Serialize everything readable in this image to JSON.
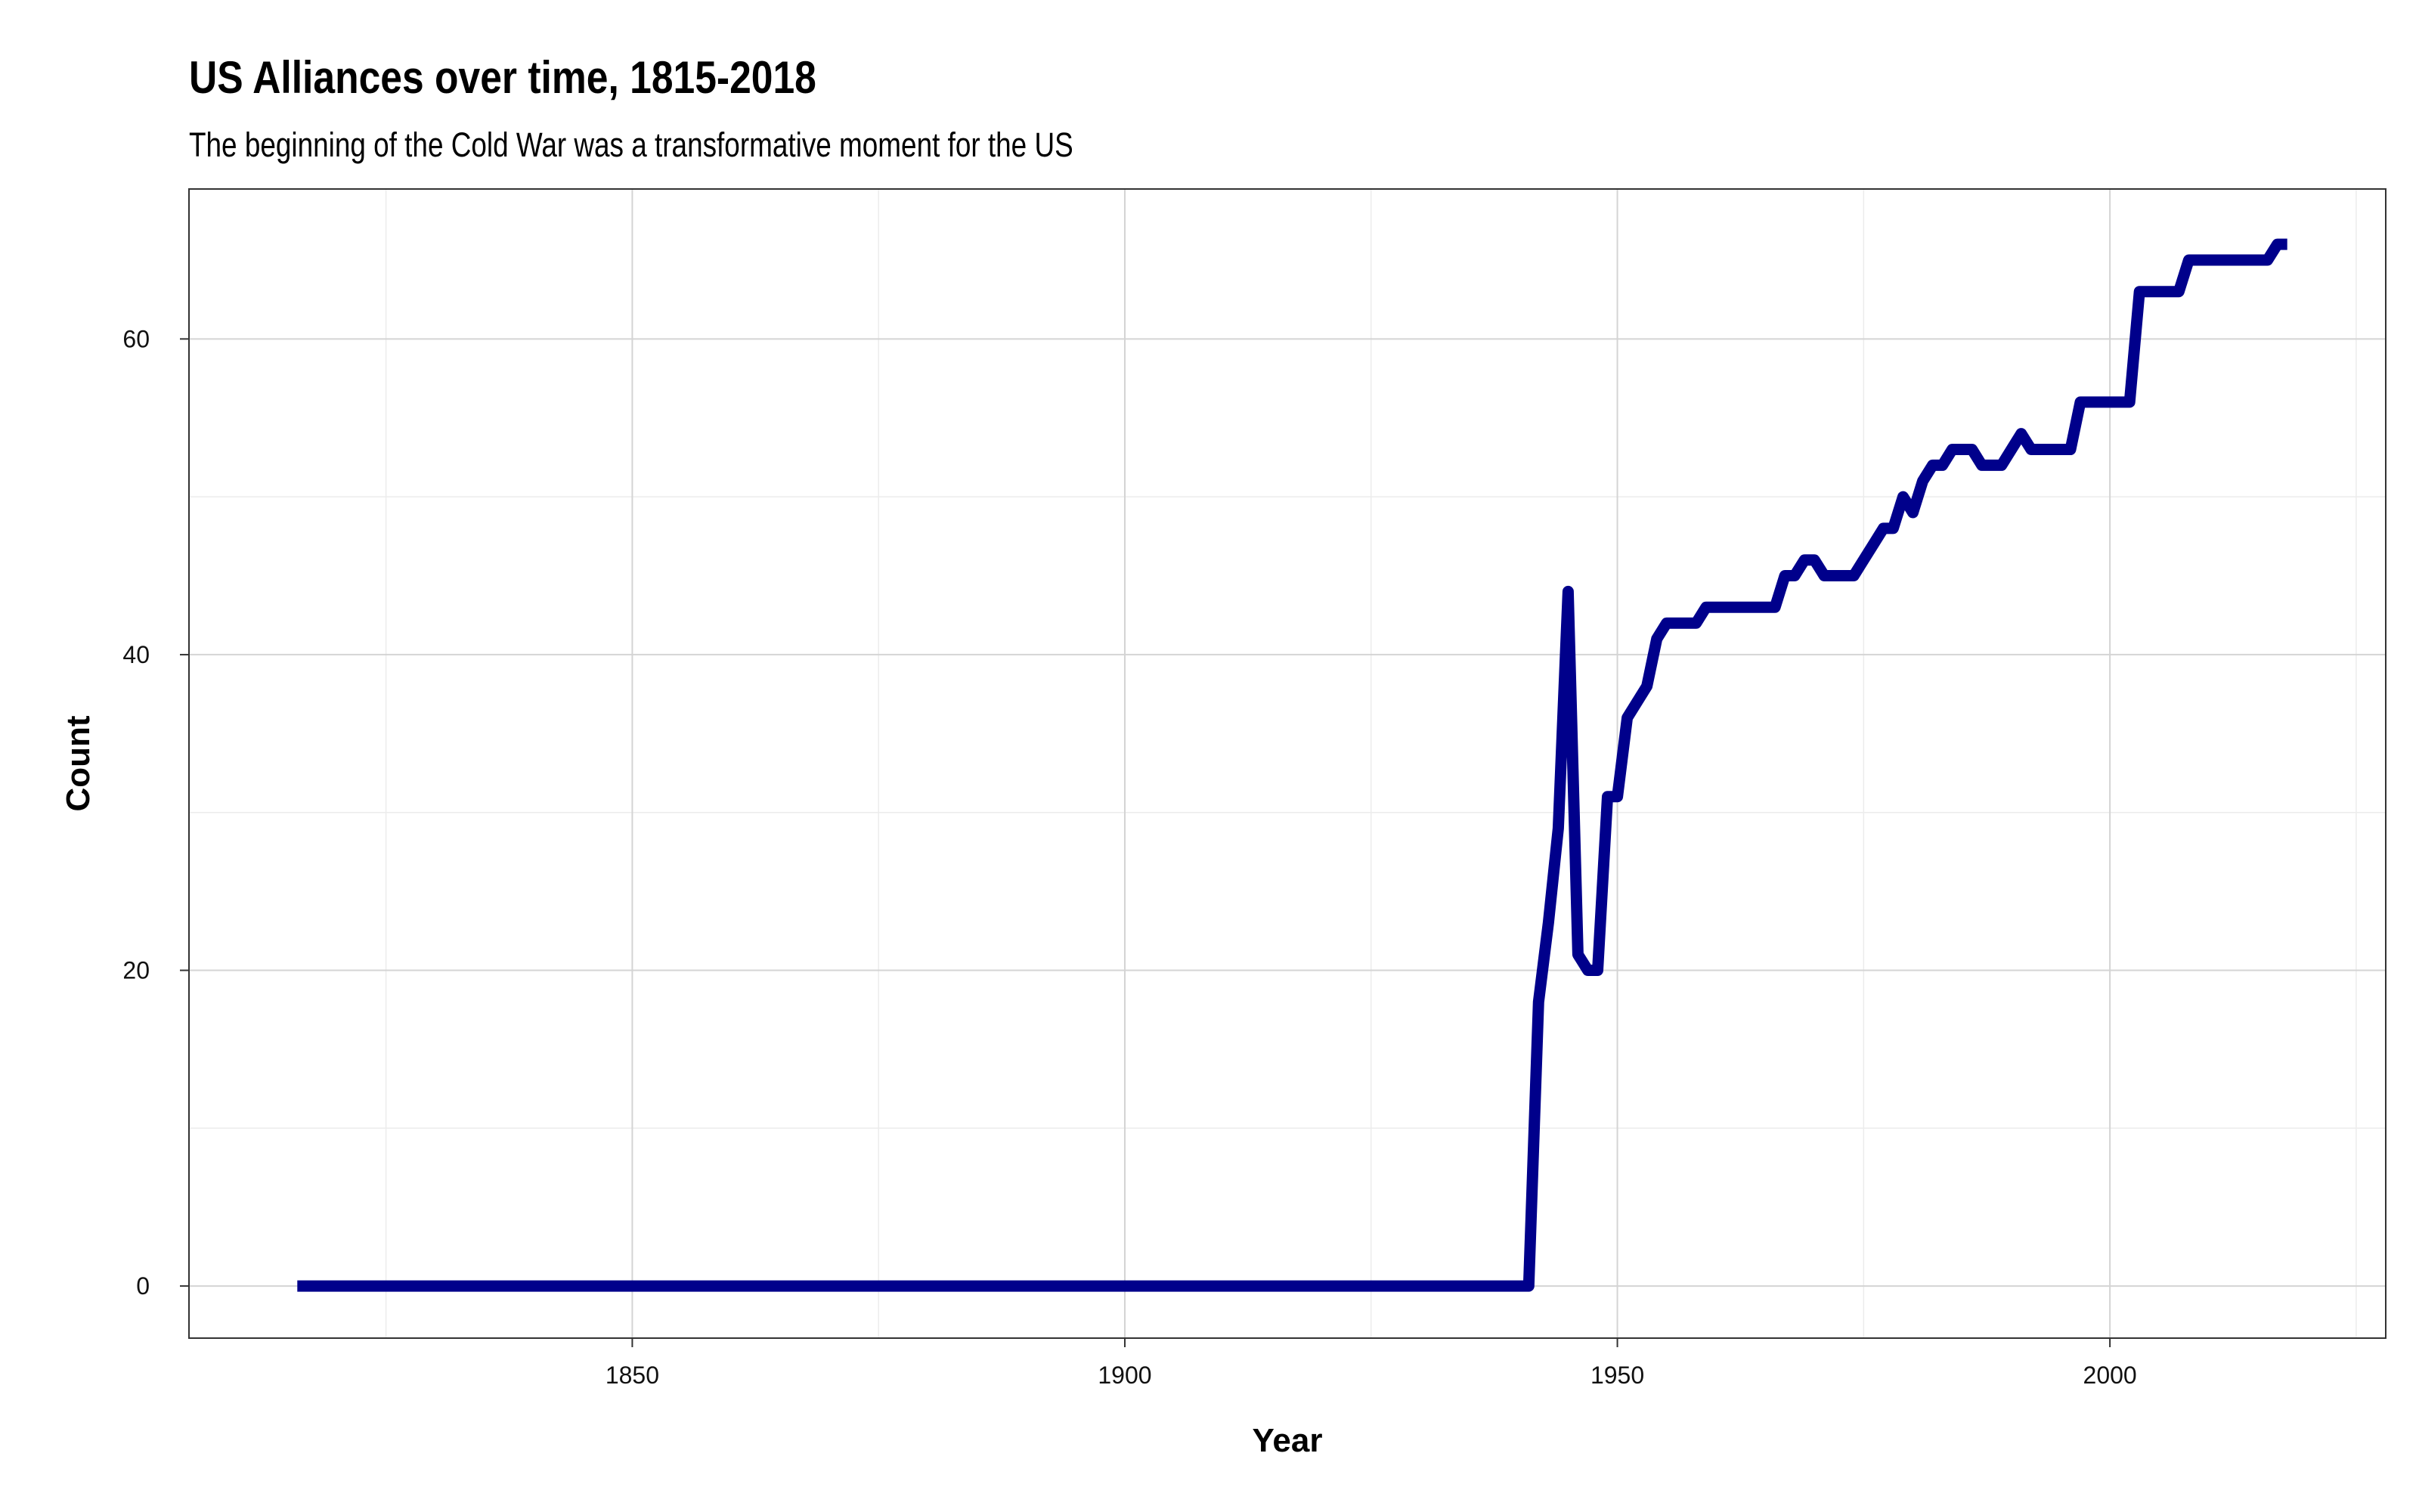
{
  "chart_data": {
    "type": "line",
    "title": "US Alliances over time, 1815-2018",
    "subtitle": "The beginning of the Cold War was a transformative moment for the US",
    "xlabel": "Year",
    "ylabel": "Count",
    "xlim": [
      1805,
      2028
    ],
    "ylim": [
      -3.3,
      69.5
    ],
    "x_ticks": [
      1850,
      1900,
      1950,
      2000
    ],
    "y_ticks": [
      0,
      20,
      40,
      60
    ],
    "grid": true,
    "line_color": "#00008B",
    "series": [
      {
        "x": [
          1816,
          1941,
          1942,
          1943,
          1944,
          1945,
          1946,
          1947,
          1948,
          1949,
          1950,
          1951,
          1952,
          1953,
          1954,
          1955,
          1956,
          1957,
          1958,
          1959,
          1960,
          1961,
          1962,
          1963,
          1964,
          1965,
          1966,
          1967,
          1968,
          1969,
          1970,
          1971,
          1972,
          1973,
          1974,
          1975,
          1976,
          1977,
          1978,
          1979,
          1980,
          1981,
          1982,
          1983,
          1984,
          1985,
          1986,
          1987,
          1988,
          1989,
          1990,
          1991,
          1992,
          1993,
          1994,
          1995,
          1996,
          1997,
          1998,
          1999,
          2000,
          2001,
          2002,
          2003,
          2004,
          2005,
          2006,
          2007,
          2008,
          2009,
          2010,
          2011,
          2012,
          2013,
          2014,
          2015,
          2016,
          2017,
          2018
        ],
        "y": [
          0,
          0,
          18,
          23,
          29,
          44,
          21,
          20,
          20,
          31,
          31,
          36,
          37,
          38,
          41,
          42,
          42,
          42,
          42,
          43,
          43,
          43,
          43,
          43,
          43,
          43,
          43,
          45,
          45,
          46,
          46,
          45,
          45,
          45,
          45,
          46,
          47,
          48,
          48,
          50,
          49,
          51,
          52,
          52,
          53,
          53,
          53,
          52,
          52,
          52,
          53,
          54,
          53,
          53,
          53,
          53,
          53,
          56,
          56,
          56,
          56,
          56,
          56,
          63,
          63,
          63,
          63,
          63,
          65,
          65,
          65,
          65,
          65,
          65,
          65,
          65,
          65,
          66,
          66
        ]
      }
    ]
  }
}
